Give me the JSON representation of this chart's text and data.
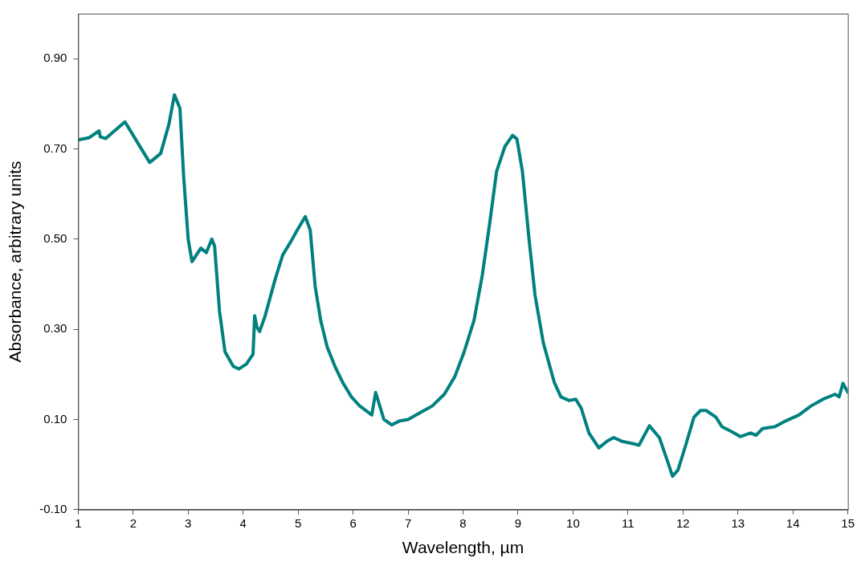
{
  "chart_data": {
    "type": "line",
    "xlabel": "Wavelength, µm",
    "ylabel": "Absorbance, arbitrary units",
    "xlim": [
      1,
      15
    ],
    "xticks": [
      1,
      2,
      3,
      4,
      5,
      6,
      7,
      8,
      9,
      10,
      11,
      12,
      13,
      14,
      15
    ],
    "ylim": [
      -0.1,
      1.0
    ],
    "yticks": [
      {
        "value": -0.1,
        "label": "-0.10"
      },
      {
        "value": 0.1,
        "label": "0.10"
      },
      {
        "value": 0.3,
        "label": "0.30"
      },
      {
        "value": 0.5,
        "label": "0.50"
      },
      {
        "value": 0.7,
        "label": "0.70"
      },
      {
        "value": 0.9,
        "label": "0.90"
      }
    ],
    "grid": false,
    "legend": false,
    "marker": "none",
    "line_style": "solid",
    "series": [
      {
        "color": "#00817f",
        "x": [
          1.0,
          1.2,
          1.38,
          1.4,
          1.5,
          1.85,
          2.0,
          2.3,
          2.5,
          2.65,
          2.75,
          2.85,
          2.92,
          3.0,
          3.07,
          3.23,
          3.33,
          3.43,
          3.48,
          3.57,
          3.67,
          3.82,
          3.92,
          4.06,
          4.18,
          4.21,
          4.25,
          4.3,
          4.4,
          4.58,
          4.72,
          4.87,
          4.97,
          5.13,
          5.22,
          5.31,
          5.41,
          5.53,
          5.68,
          5.82,
          5.97,
          6.12,
          6.34,
          6.41,
          6.56,
          6.7,
          6.85,
          7.0,
          7.22,
          7.44,
          7.66,
          7.85,
          8.02,
          8.2,
          8.35,
          8.49,
          8.61,
          8.76,
          8.9,
          8.98,
          9.08,
          9.2,
          9.31,
          9.46,
          9.66,
          9.78,
          9.93,
          10.05,
          10.15,
          10.29,
          10.47,
          10.62,
          10.74,
          10.88,
          11.1,
          11.2,
          11.39,
          11.57,
          11.72,
          11.81,
          11.91,
          12.05,
          12.2,
          12.32,
          12.42,
          12.6,
          12.71,
          12.93,
          13.04,
          13.23,
          13.33,
          13.45,
          13.67,
          13.89,
          14.11,
          14.33,
          14.55,
          14.77,
          14.84,
          14.91,
          15.0
        ],
        "values": [
          0.72,
          0.725,
          0.74,
          0.727,
          0.723,
          0.76,
          0.73,
          0.67,
          0.69,
          0.755,
          0.82,
          0.79,
          0.635,
          0.5,
          0.45,
          0.48,
          0.47,
          0.5,
          0.485,
          0.34,
          0.25,
          0.218,
          0.212,
          0.223,
          0.245,
          0.33,
          0.305,
          0.295,
          0.33,
          0.41,
          0.465,
          0.495,
          0.517,
          0.55,
          0.52,
          0.395,
          0.32,
          0.26,
          0.215,
          0.18,
          0.15,
          0.13,
          0.11,
          0.16,
          0.1,
          0.088,
          0.097,
          0.1,
          0.115,
          0.13,
          0.156,
          0.195,
          0.25,
          0.32,
          0.42,
          0.54,
          0.65,
          0.705,
          0.73,
          0.722,
          0.65,
          0.5,
          0.375,
          0.27,
          0.182,
          0.15,
          0.142,
          0.145,
          0.125,
          0.07,
          0.037,
          0.052,
          0.06,
          0.052,
          0.046,
          0.043,
          0.086,
          0.06,
          0.007,
          -0.026,
          -0.012,
          0.043,
          0.105,
          0.12,
          0.12,
          0.105,
          0.084,
          0.07,
          0.062,
          0.07,
          0.065,
          0.08,
          0.084,
          0.098,
          0.11,
          0.13,
          0.145,
          0.156,
          0.15,
          0.18,
          0.16
        ]
      }
    ]
  }
}
